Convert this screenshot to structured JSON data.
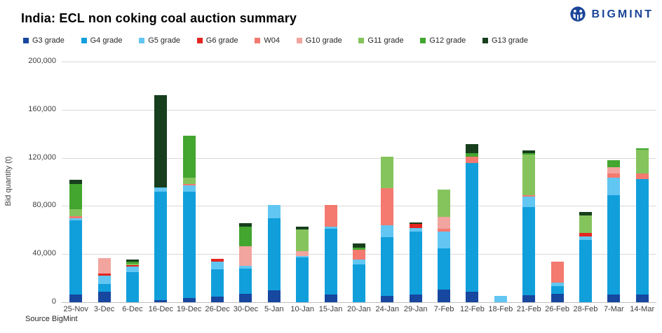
{
  "brand": {
    "name": "BIGMINT",
    "color": "#1B4598"
  },
  "source": "Source BigMint",
  "chart_data": {
    "type": "bar",
    "stacked": true,
    "title": "India: ECL non coking coal auction summary",
    "xlabel": "",
    "ylabel": "Bid quantity (t)",
    "ylim": [
      0,
      200000
    ],
    "ytick_interval": 40000,
    "yticks": [
      0,
      40000,
      80000,
      120000,
      160000,
      200000
    ],
    "ytick_labels": [
      "0",
      "40,000",
      "80,000",
      "120,000",
      "160,000",
      "200,000"
    ],
    "grid": true,
    "legend_position": "top",
    "categories": [
      "25-Nov",
      "3-Dec",
      "6-Dec",
      "16-Dec",
      "19-Dec",
      "26-Dec",
      "30-Dec",
      "5-Jan",
      "10-Jan",
      "15-Jan",
      "20-Jan",
      "24-Jan",
      "29-Jan",
      "7-Feb",
      "12-Feb",
      "18-Feb",
      "21-Feb",
      "26-Feb",
      "28-Feb",
      "7-Mar",
      "14-Mar"
    ],
    "series": [
      {
        "name": "G3 grade",
        "color": "#17479E",
        "values": [
          6500,
          9000,
          0,
          2000,
          3500,
          4500,
          7000,
          10000,
          0,
          6500,
          0,
          5000,
          6500,
          10500,
          9000,
          0,
          6000,
          7000,
          0,
          6500,
          6500
        ]
      },
      {
        "name": "G4 grade",
        "color": "#119FDB",
        "values": [
          61500,
          6000,
          25000,
          90000,
          88500,
          23000,
          21000,
          60000,
          37000,
          54500,
          31500,
          49000,
          52500,
          34500,
          106500,
          0,
          73000,
          6500,
          52000,
          82500,
          96000
        ]
      },
      {
        "name": "G5 grade",
        "color": "#62C6F2",
        "values": [
          2000,
          7000,
          4500,
          3500,
          5000,
          6500,
          2500,
          11000,
          1500,
          2000,
          4000,
          10000,
          2500,
          13500,
          0,
          5000,
          9000,
          3000,
          2500,
          14500,
          0
        ]
      },
      {
        "name": "G6 grade",
        "color": "#E52520",
        "values": [
          0,
          2000,
          1500,
          0,
          0,
          2200,
          0,
          0,
          0,
          0,
          0,
          0,
          3500,
          0,
          0,
          0,
          0,
          0,
          3000,
          0,
          0
        ]
      },
      {
        "name": "W04",
        "color": "#F4796F",
        "values": [
          1500,
          0,
          0,
          0,
          1500,
          0,
          0,
          0,
          0,
          18000,
          8000,
          31000,
          0,
          2500,
          5500,
          0,
          1000,
          17500,
          0,
          3500,
          4500
        ]
      },
      {
        "name": "G10 grade",
        "color": "#F2A49E",
        "values": [
          0,
          12500,
          0,
          0,
          0,
          0,
          16000,
          0,
          4000,
          0,
          0,
          0,
          0,
          10000,
          0,
          0,
          0,
          0,
          0,
          5000,
          0
        ]
      },
      {
        "name": "G11 grade",
        "color": "#85C45D",
        "values": [
          6000,
          0,
          1200,
          0,
          5000,
          0,
          0,
          0,
          18000,
          0,
          0,
          26000,
          0,
          22500,
          0,
          0,
          33500,
          0,
          14500,
          0,
          19500
        ]
      },
      {
        "name": "G12 grade",
        "color": "#42A62F",
        "values": [
          21000,
          0,
          1500,
          0,
          35000,
          0,
          16500,
          0,
          0,
          0,
          2000,
          0,
          0,
          0,
          3000,
          0,
          1500,
          0,
          0,
          6000,
          1500
        ]
      },
      {
        "name": "G13 grade",
        "color": "#173F1D",
        "values": [
          3000,
          0,
          1800,
          76500,
          0,
          0,
          2700,
          0,
          2300,
          0,
          3500,
          0,
          1500,
          0,
          7500,
          0,
          2000,
          0,
          3000,
          0,
          0
        ]
      }
    ]
  }
}
